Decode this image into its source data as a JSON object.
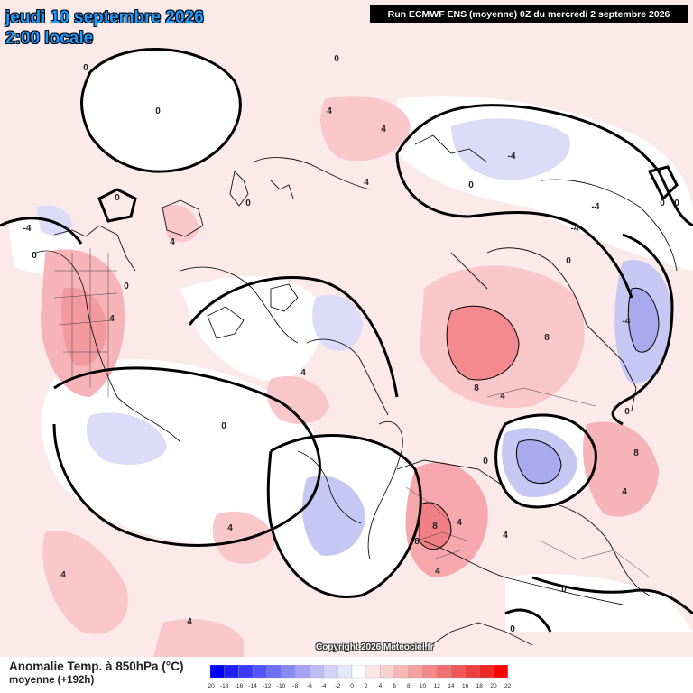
{
  "header": {
    "date": "jeudi 10 septembre 2026",
    "time": "2:00 locale",
    "run": "Run ECMWF ENS (moyenne) 0Z du mercredi 2 septembre 2026"
  },
  "copyright": "Copyright 2026 Meteociel.fr",
  "footer": {
    "parameter": "Anomalie Temp. à 850hPa (°C)",
    "mean": "moyenne   (+192h)"
  },
  "legend": {
    "ticks": [
      "-20",
      "-18",
      "-16",
      "-14",
      "-12",
      "-10",
      "-8",
      "-6",
      "-4",
      "-2",
      "0",
      "2",
      "4",
      "6",
      "8",
      "10",
      "12",
      "14",
      "16",
      "18",
      "20",
      "22"
    ],
    "colors": [
      "#0000ff",
      "#1f1fff",
      "#3a3aff",
      "#5555ff",
      "#6f6ff5",
      "#8a8af0",
      "#a4a4f3",
      "#bcbcf7",
      "#d4d4fa",
      "#e8e8fc",
      "#ffffff",
      "#fde6e6",
      "#fbd0d0",
      "#f9b8b8",
      "#f7a0a0",
      "#f58888",
      "#f37070",
      "#f05858",
      "#ed4040",
      "#ea2828",
      "#ff0000"
    ]
  },
  "map": {
    "background_color": "#fce9ea",
    "contour_labels": [
      "0",
      "0",
      "0",
      "0",
      "0",
      "0",
      "0",
      "0",
      "0",
      "0",
      "0",
      "0",
      "0",
      "0",
      "0",
      "0",
      "4",
      "4",
      "4",
      "4",
      "4",
      "4",
      "4",
      "4",
      "4",
      "4",
      "4",
      "4",
      "4",
      "4",
      "-4",
      "-4",
      "-4",
      "-4",
      "-4",
      "8",
      "8",
      "8",
      "8",
      "8"
    ]
  }
}
